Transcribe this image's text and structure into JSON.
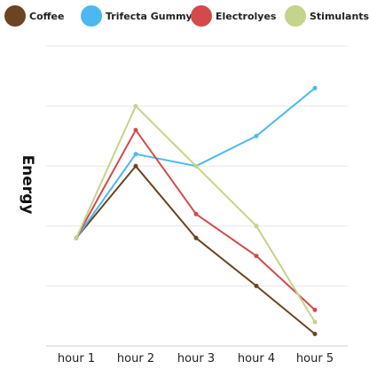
{
  "chart_data": {
    "type": "line",
    "title": "",
    "xlabel": "",
    "ylabel": "Energy",
    "categories": [
      "hour 1",
      "hour 2",
      "hour 3",
      "hour 4",
      "hour 5"
    ],
    "ylim": [
      0,
      10
    ],
    "grid": true,
    "legend_position": "top",
    "series": [
      {
        "name": "Coffee",
        "color": "#6b4421",
        "values": [
          3.6,
          6.0,
          3.6,
          2.0,
          0.4
        ]
      },
      {
        "name": "Trifecta Gummy",
        "color": "#4db8f0",
        "values": [
          3.6,
          6.4,
          6.0,
          7.0,
          8.6
        ]
      },
      {
        "name": "Electrolyes",
        "color": "#d44a4a",
        "values": [
          3.6,
          7.2,
          4.4,
          3.0,
          1.2
        ]
      },
      {
        "name": "Stimulants",
        "color": "#c4d48a",
        "values": [
          3.6,
          8.0,
          6.0,
          4.0,
          0.8
        ]
      }
    ]
  }
}
